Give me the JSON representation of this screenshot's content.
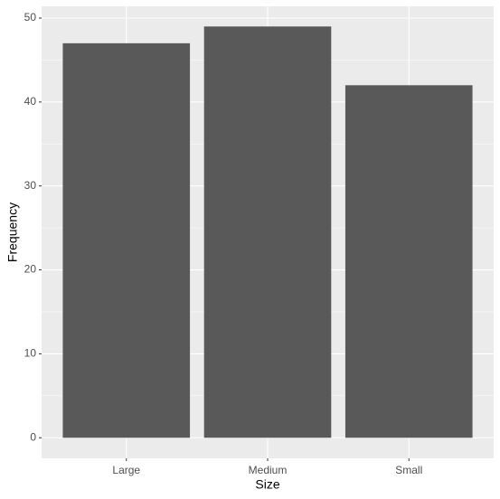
{
  "chart_data": {
    "type": "bar",
    "x_label": "Size",
    "y_label": "Frequency",
    "categories": [
      "Large",
      "Medium",
      "Small"
    ],
    "values": [
      47,
      49,
      42
    ],
    "color": "#595959",
    "ylim": [
      -2.45,
      51.4
    ],
    "yticks": [
      0,
      10,
      20,
      30,
      40,
      50
    ],
    "minor_yticks": [
      5,
      15,
      25,
      35,
      45
    ],
    "grid": true
  }
}
